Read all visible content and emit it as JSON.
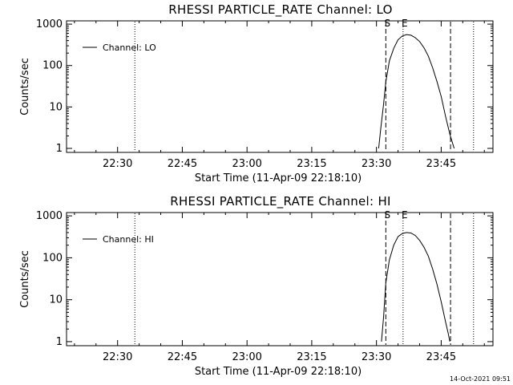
{
  "timestamp": "14-Oct-2021 09:51",
  "chart_data": [
    {
      "type": "line",
      "title": "RHESSI PARTICLE_RATE Channel: LO",
      "xlabel": "Start Time (11-Apr-09 22:18:10)",
      "ylabel": "Counts/sec",
      "yscale": "log",
      "ylim": [
        0.8,
        1200
      ],
      "xlim": [
        "22:18:10",
        "23:57:00"
      ],
      "x_ticks": [
        "22:30",
        "22:45",
        "23:00",
        "23:15",
        "23:30",
        "23:45"
      ],
      "y_ticks": [
        "1",
        "10",
        "100",
        "1000"
      ],
      "legend": {
        "entries": [
          "Channel: LO"
        ],
        "position": "top-left"
      },
      "grid": false,
      "vlines": [
        {
          "x": "22:34:00",
          "style": "dotted"
        },
        {
          "x": "23:32:10",
          "style": "dashed",
          "label": "S"
        },
        {
          "x": "23:36:10",
          "style": "dotted",
          "label": "E"
        },
        {
          "x": "23:47:10",
          "style": "dashed"
        },
        {
          "x": "23:52:30",
          "style": "dotted"
        }
      ],
      "series": [
        {
          "name": "Channel: LO",
          "x": [
            "23:30:30",
            "23:31:00",
            "23:31:40",
            "23:32:10",
            "23:33:00",
            "23:34:00",
            "23:35:00",
            "23:36:00",
            "23:37:00",
            "23:38:00",
            "23:39:00",
            "23:40:00",
            "23:41:00",
            "23:42:00",
            "23:43:00",
            "23:44:00",
            "23:45:00",
            "23:46:00",
            "23:47:00",
            "23:47:40",
            "23:48:00"
          ],
          "y": [
            1,
            3,
            12,
            40,
            130,
            260,
            420,
            520,
            560,
            540,
            470,
            380,
            270,
            170,
            90,
            42,
            18,
            6,
            2.2,
            1.3,
            1
          ]
        }
      ]
    },
    {
      "type": "line",
      "title": "RHESSI PARTICLE_RATE Channel: HI",
      "xlabel": "Start Time (11-Apr-09 22:18:10)",
      "ylabel": "Counts/sec",
      "yscale": "log",
      "ylim": [
        0.8,
        1200
      ],
      "xlim": [
        "22:18:10",
        "23:57:00"
      ],
      "x_ticks": [
        "22:30",
        "22:45",
        "23:00",
        "23:15",
        "23:30",
        "23:45"
      ],
      "y_ticks": [
        "1",
        "10",
        "100",
        "1000"
      ],
      "legend": {
        "entries": [
          "Channel: HI"
        ],
        "position": "top-left"
      },
      "grid": false,
      "vlines": [
        {
          "x": "22:34:00",
          "style": "dotted"
        },
        {
          "x": "23:32:10",
          "style": "dashed",
          "label": "S"
        },
        {
          "x": "23:36:10",
          "style": "dotted",
          "label": "E"
        },
        {
          "x": "23:47:10",
          "style": "dashed"
        },
        {
          "x": "23:52:30",
          "style": "dotted"
        }
      ],
      "series": [
        {
          "name": "Channel: HI",
          "x": [
            "23:31:10",
            "23:31:40",
            "23:32:10",
            "23:33:00",
            "23:34:00",
            "23:35:00",
            "23:36:00",
            "23:37:00",
            "23:38:00",
            "23:39:00",
            "23:40:00",
            "23:41:00",
            "23:42:00",
            "23:43:00",
            "23:44:00",
            "23:45:00",
            "23:46:00",
            "23:46:40",
            "23:47:00"
          ],
          "y": [
            1,
            4,
            25,
            90,
            200,
            320,
            380,
            400,
            390,
            340,
            260,
            180,
            110,
            55,
            24,
            9,
            3,
            1.5,
            1
          ]
        }
      ]
    }
  ]
}
